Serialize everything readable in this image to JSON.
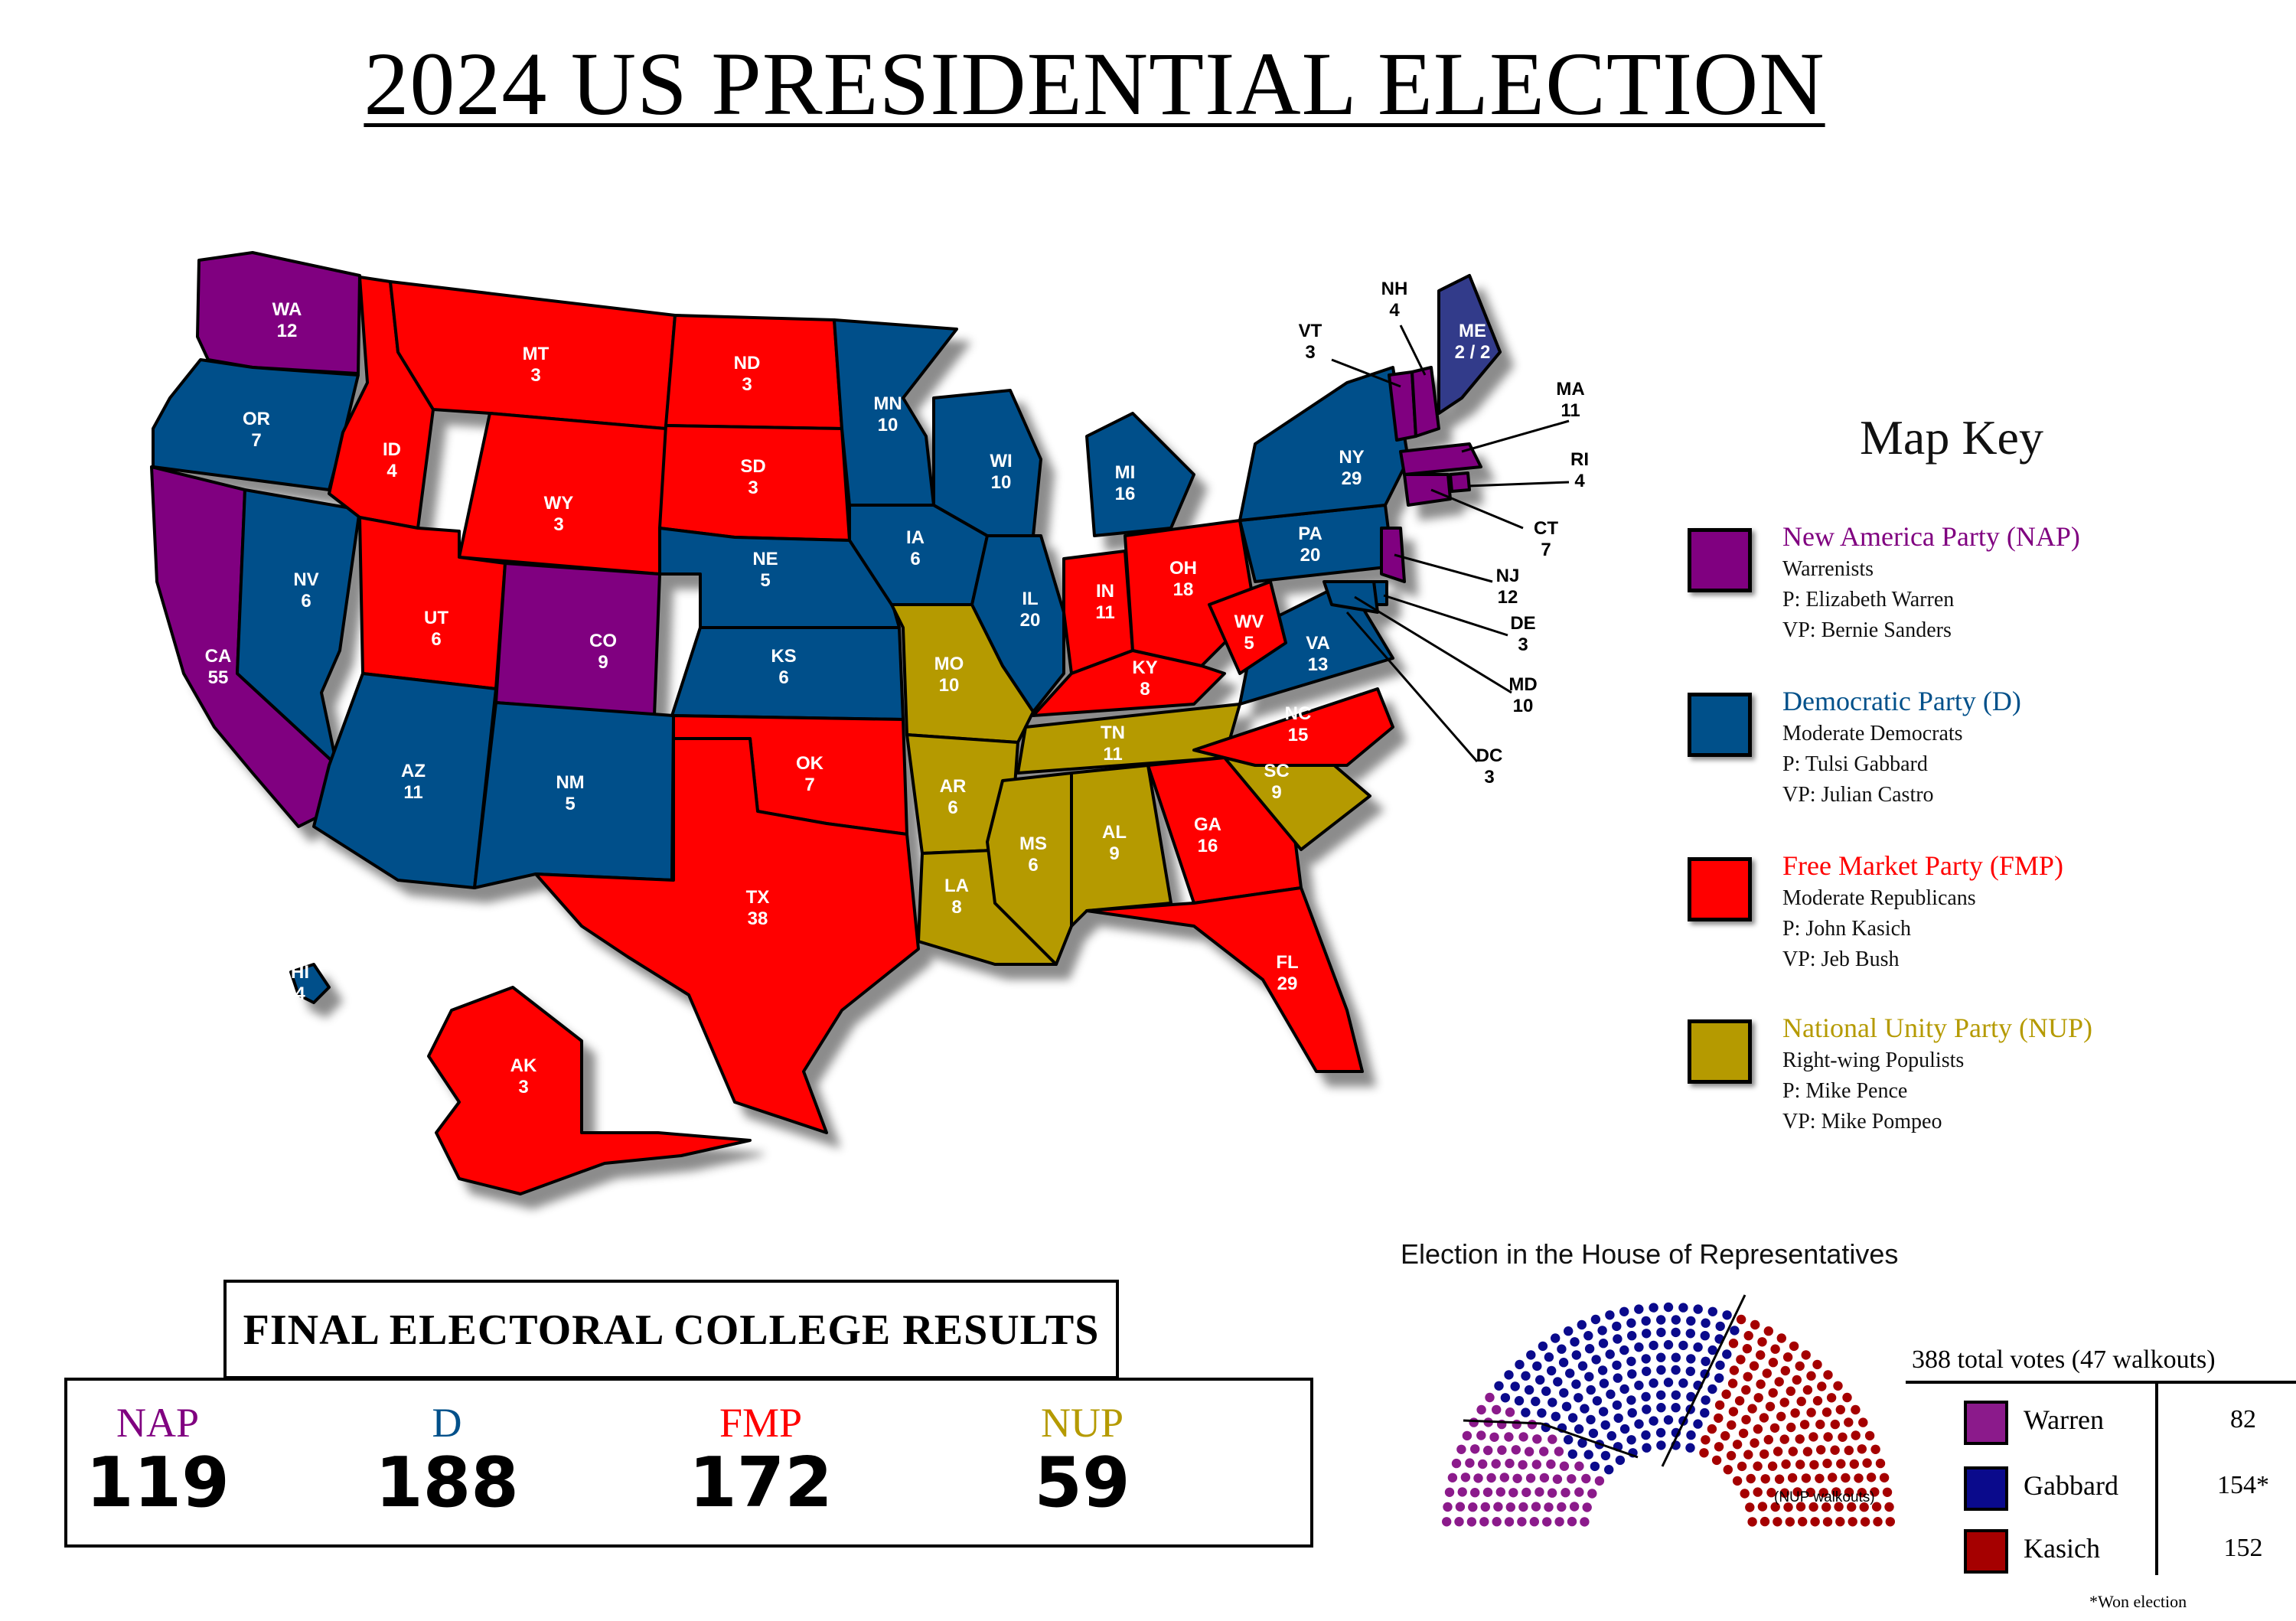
{
  "title": "2024 US PRESIDENTIAL ELECTION",
  "colors": {
    "NAP": "#800080",
    "D": "#00508A",
    "FMP": "#FF0000",
    "NUP": "#B59A00",
    "house_warren": "#8B1A8B",
    "house_gabbard": "#0A0A8C",
    "house_kasich": "#A50000"
  },
  "states": {
    "WA": {
      "abbr": "WA",
      "ev": "12"
    },
    "OR": {
      "abbr": "OR",
      "ev": "7"
    },
    "CA": {
      "abbr": "CA",
      "ev": "55"
    },
    "NV": {
      "abbr": "NV",
      "ev": "6"
    },
    "ID": {
      "abbr": "ID",
      "ev": "4"
    },
    "MT": {
      "abbr": "MT",
      "ev": "3"
    },
    "WY": {
      "abbr": "WY",
      "ev": "3"
    },
    "UT": {
      "abbr": "UT",
      "ev": "6"
    },
    "CO": {
      "abbr": "CO",
      "ev": "9"
    },
    "AZ": {
      "abbr": "AZ",
      "ev": "11"
    },
    "NM": {
      "abbr": "NM",
      "ev": "5"
    },
    "ND": {
      "abbr": "ND",
      "ev": "3"
    },
    "SD": {
      "abbr": "SD",
      "ev": "3"
    },
    "NE": {
      "abbr": "NE",
      "ev": "5"
    },
    "KS": {
      "abbr": "KS",
      "ev": "6"
    },
    "OK": {
      "abbr": "OK",
      "ev": "7"
    },
    "TX": {
      "abbr": "TX",
      "ev": "38"
    },
    "MN": {
      "abbr": "MN",
      "ev": "10"
    },
    "IA": {
      "abbr": "IA",
      "ev": "6"
    },
    "MO": {
      "abbr": "MO",
      "ev": "10"
    },
    "AR": {
      "abbr": "AR",
      "ev": "6"
    },
    "LA": {
      "abbr": "LA",
      "ev": "8"
    },
    "WI": {
      "abbr": "WI",
      "ev": "10"
    },
    "IL": {
      "abbr": "IL",
      "ev": "20"
    },
    "MI": {
      "abbr": "MI",
      "ev": "16"
    },
    "IN": {
      "abbr": "IN",
      "ev": "11"
    },
    "OH": {
      "abbr": "OH",
      "ev": "18"
    },
    "KY": {
      "abbr": "KY",
      "ev": "8"
    },
    "TN": {
      "abbr": "TN",
      "ev": "11"
    },
    "MS": {
      "abbr": "MS",
      "ev": "6"
    },
    "AL": {
      "abbr": "AL",
      "ev": "9"
    },
    "GA": {
      "abbr": "GA",
      "ev": "16"
    },
    "FL": {
      "abbr": "FL",
      "ev": "29"
    },
    "SC": {
      "abbr": "SC",
      "ev": "9"
    },
    "NC": {
      "abbr": "NC",
      "ev": "15"
    },
    "VA": {
      "abbr": "VA",
      "ev": "13"
    },
    "WV": {
      "abbr": "WV",
      "ev": "5"
    },
    "PA": {
      "abbr": "PA",
      "ev": "20"
    },
    "NY": {
      "abbr": "NY",
      "ev": "29"
    },
    "VT": {
      "abbr": "VT",
      "ev": "3"
    },
    "NH": {
      "abbr": "NH",
      "ev": "4"
    },
    "ME": {
      "abbr": "ME",
      "ev": "2 / 2"
    },
    "MA": {
      "abbr": "MA",
      "ev": "11"
    },
    "RI": {
      "abbr": "RI",
      "ev": "4"
    },
    "CT": {
      "abbr": "CT",
      "ev": "7"
    },
    "NJ": {
      "abbr": "NJ",
      "ev": "12"
    },
    "DE": {
      "abbr": "DE",
      "ev": "3"
    },
    "MD": {
      "abbr": "MD",
      "ev": "10"
    },
    "DC": {
      "abbr": "DC",
      "ev": "3"
    },
    "HI": {
      "abbr": "HI",
      "ev": "4"
    },
    "AK": {
      "abbr": "AK",
      "ev": "3"
    }
  },
  "map_key": {
    "title": "Map Key",
    "parties": [
      {
        "name": "New America Party (NAP)",
        "faction": "Warrenists",
        "president": "P: Elizabeth Warren",
        "vp": "VP: Bernie Sanders",
        "color": "#800080"
      },
      {
        "name": "Democratic Party (D)",
        "faction": "Moderate Democrats",
        "president": "P: Tulsi Gabbard",
        "vp": "VP: Julian Castro",
        "color": "#00508A"
      },
      {
        "name": "Free Market Party (FMP)",
        "faction": "Moderate Republicans",
        "president": "P: John Kasich",
        "vp": "VP: Jeb Bush",
        "color": "#FF0000"
      },
      {
        "name": "National Unity Party (NUP)",
        "faction": "Right-wing Populists",
        "president": "P: Mike Pence",
        "vp": "VP: Mike Pompeo",
        "color": "#B59A00"
      }
    ]
  },
  "results": {
    "title": "FINAL ELECTORAL COLLEGE RESULTS",
    "parties": [
      {
        "abbr": "NAP",
        "votes": "119",
        "color": "#800080"
      },
      {
        "abbr": "D",
        "votes": "188",
        "color": "#00508A"
      },
      {
        "abbr": "FMP",
        "votes": "172",
        "color": "#FF0000"
      },
      {
        "abbr": "NUP",
        "votes": "59",
        "color": "#B59A00"
      }
    ]
  },
  "house": {
    "title": "Election in the House of Representatives",
    "total": "388 total votes (47 walkouts)",
    "walkout_label": "(NUP walkouts)",
    "candidates": [
      {
        "name": "Warren",
        "votes": "82",
        "seats": 82,
        "color": "#8B1A8B"
      },
      {
        "name": "Gabbard",
        "votes": "154*",
        "seats": 154,
        "color": "#0A0A8C"
      },
      {
        "name": "Kasich",
        "votes": "152",
        "seats": 152,
        "color": "#A50000"
      }
    ],
    "note": "*Won election"
  }
}
